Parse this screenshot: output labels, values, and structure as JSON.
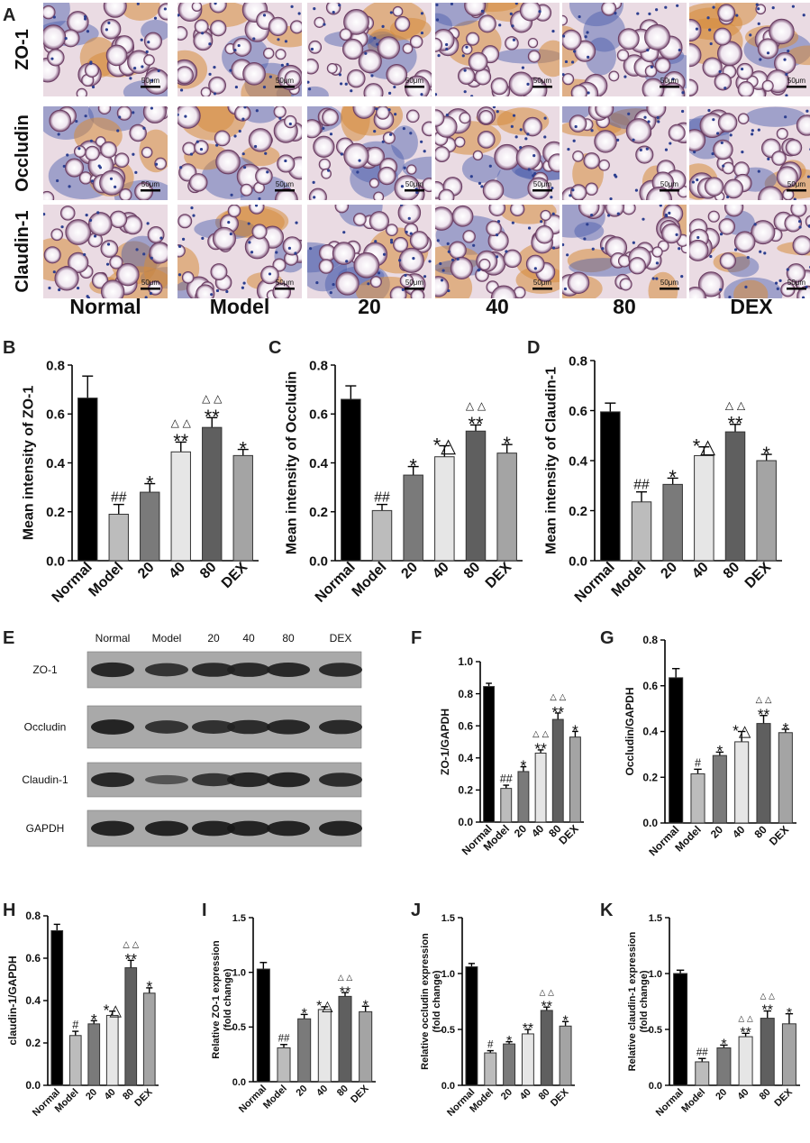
{
  "panel_letters": [
    "A",
    "B",
    "C",
    "D",
    "E",
    "F",
    "G",
    "H",
    "I",
    "J",
    "K"
  ],
  "histology": {
    "row_labels": [
      "ZO-1",
      "Occludin",
      "Claudin-1"
    ],
    "group_labels": [
      "Normal",
      "Model",
      "20",
      "40",
      "80",
      "DEX"
    ],
    "scale_bar": "50μm"
  },
  "western_blot": {
    "lane_labels": [
      "Normal",
      "Model",
      "20",
      "40",
      "80",
      "DEX"
    ],
    "band_labels": [
      "ZO-1",
      "Occludin",
      "Claudin-1",
      "GAPDH"
    ],
    "band_intensity": [
      [
        0.85,
        0.72,
        0.8,
        0.82,
        0.84,
        0.8
      ],
      [
        0.9,
        0.72,
        0.75,
        0.8,
        0.85,
        0.82
      ],
      [
        0.85,
        0.35,
        0.7,
        0.85,
        0.88,
        0.8
      ],
      [
        0.9,
        0.9,
        0.9,
        0.9,
        0.9,
        0.9
      ]
    ]
  },
  "colors": {
    "bars": [
      "#000000",
      "#bcbcbc",
      "#7a7a7a",
      "#e6e6e6",
      "#5f5f5f",
      "#a4a4a4"
    ],
    "bar_edge": "#333333"
  },
  "chart_data": [
    {
      "panel": "B",
      "type": "bar",
      "categories": [
        "Normal",
        "Model",
        "20",
        "40",
        "80",
        "DEX"
      ],
      "values": [
        0.665,
        0.19,
        0.28,
        0.445,
        0.545,
        0.43
      ],
      "errors": [
        0.09,
        0.04,
        0.035,
        0.04,
        0.04,
        0.025
      ],
      "annotations": [
        "",
        "##",
        "*",
        "**",
        "**",
        "*"
      ],
      "triangles": [
        "",
        "",
        "",
        "△ △",
        "△ △",
        ""
      ],
      "ylabel": "Mean intensity of ZO-1",
      "ylim": [
        0,
        0.8
      ],
      "yticks": [
        "0.0",
        "0.2",
        "0.4",
        "0.6",
        "0.8"
      ]
    },
    {
      "panel": "C",
      "type": "bar",
      "categories": [
        "Normal",
        "Model",
        "20",
        "40",
        "80",
        "DEX"
      ],
      "values": [
        0.66,
        0.205,
        0.35,
        0.425,
        0.53,
        0.44
      ],
      "errors": [
        0.055,
        0.025,
        0.035,
        0.045,
        0.025,
        0.035
      ],
      "annotations": [
        "",
        "##",
        "*",
        "*△",
        "**",
        "*"
      ],
      "triangles": [
        "",
        "",
        "",
        "",
        "△ △",
        ""
      ],
      "ylabel": "Mean intensity of Occludin",
      "ylim": [
        0,
        0.8
      ],
      "yticks": [
        "0.0",
        "0.2",
        "0.4",
        "0.6",
        "0.8"
      ]
    },
    {
      "panel": "D",
      "type": "bar",
      "categories": [
        "Normal",
        "Model",
        "20",
        "40",
        "80",
        "DEX"
      ],
      "values": [
        0.595,
        0.235,
        0.305,
        0.42,
        0.515,
        0.4
      ],
      "errors": [
        0.035,
        0.04,
        0.025,
        0.035,
        0.03,
        0.025
      ],
      "annotations": [
        "",
        "##",
        "*",
        "*△",
        "**",
        "*"
      ],
      "triangles": [
        "",
        "",
        "",
        "",
        "△ △",
        ""
      ],
      "ylabel": "Mean intensity of Claudin-1",
      "ylim": [
        0,
        0.8
      ],
      "yticks": [
        "0.0",
        "0.2",
        "0.4",
        "0.6",
        "0.8"
      ]
    },
    {
      "panel": "F",
      "type": "bar",
      "categories": [
        "Normal",
        "Model",
        "20",
        "40",
        "80",
        "DEX"
      ],
      "values": [
        0.845,
        0.21,
        0.315,
        0.43,
        0.64,
        0.53
      ],
      "errors": [
        0.02,
        0.02,
        0.03,
        0.02,
        0.04,
        0.035
      ],
      "annotations": [
        "",
        "##",
        "*",
        "**",
        "**",
        "*"
      ],
      "triangles": [
        "",
        "",
        "",
        "△ △",
        "△ △",
        ""
      ],
      "ylabel": "ZO-1/GAPDH",
      "ylim": [
        0,
        1.0
      ],
      "yticks": [
        "0.0",
        "0.2",
        "0.4",
        "0.6",
        "0.8",
        "1.0"
      ]
    },
    {
      "panel": "G",
      "type": "bar",
      "categories": [
        "Normal",
        "Model",
        "20",
        "40",
        "80",
        "DEX"
      ],
      "values": [
        0.635,
        0.215,
        0.295,
        0.355,
        0.435,
        0.395
      ],
      "errors": [
        0.04,
        0.02,
        0.015,
        0.045,
        0.035,
        0.015
      ],
      "annotations": [
        "",
        "#",
        "*",
        "*△",
        "**",
        "*"
      ],
      "triangles": [
        "",
        "",
        "",
        "",
        "△ △",
        ""
      ],
      "ylabel": "Occludin/GAPDH",
      "ylim": [
        0,
        0.8
      ],
      "yticks": [
        "0.0",
        "0.2",
        "0.4",
        "0.6",
        "0.8"
      ]
    },
    {
      "panel": "H",
      "type": "bar",
      "categories": [
        "Normal",
        "Model",
        "20",
        "40",
        "80",
        "DEX"
      ],
      "values": [
        0.73,
        0.235,
        0.29,
        0.33,
        0.555,
        0.435
      ],
      "errors": [
        0.03,
        0.02,
        0.015,
        0.02,
        0.035,
        0.025
      ],
      "annotations": [
        "",
        "#",
        "*",
        "*△",
        "**",
        "*"
      ],
      "triangles": [
        "",
        "",
        "",
        "",
        "△ △",
        ""
      ],
      "ylabel": "claudin-1/GAPDH",
      "ylim": [
        0,
        0.8
      ],
      "yticks": [
        "0.0",
        "0.2",
        "0.4",
        "0.6",
        "0.8"
      ]
    },
    {
      "panel": "I",
      "type": "bar",
      "categories": [
        "Normal",
        "Model",
        "20",
        "40",
        "80",
        "DEX"
      ],
      "values": [
        1.03,
        0.31,
        0.575,
        0.66,
        0.78,
        0.64
      ],
      "errors": [
        0.06,
        0.03,
        0.04,
        0.025,
        0.035,
        0.05
      ],
      "annotations": [
        "",
        "##",
        "*",
        "*△",
        "**",
        "*"
      ],
      "triangles": [
        "",
        "",
        "",
        "",
        "△ △",
        ""
      ],
      "ylabel": "Relative ZO-1 expression\n(fold change)",
      "ylim": [
        0,
        1.5
      ],
      "yticks": [
        "0.0",
        "0.5",
        "1.0",
        "1.5"
      ]
    },
    {
      "panel": "J",
      "type": "bar",
      "categories": [
        "Normal",
        "Model",
        "20",
        "40",
        "80",
        "DEX"
      ],
      "values": [
        1.06,
        0.29,
        0.37,
        0.46,
        0.67,
        0.53
      ],
      "errors": [
        0.03,
        0.02,
        0.02,
        0.04,
        0.03,
        0.04
      ],
      "annotations": [
        "",
        "#",
        "*",
        "**",
        "**",
        "*"
      ],
      "triangles": [
        "",
        "",
        "",
        "",
        "△ △",
        ""
      ],
      "ylabel": "Relative occludin expression\n(fold change)",
      "ylim": [
        0,
        1.5
      ],
      "yticks": [
        "0.0",
        "0.5",
        "1.0",
        "1.5"
      ]
    },
    {
      "panel": "K",
      "type": "bar",
      "categories": [
        "Normal",
        "Model",
        "20",
        "40",
        "80",
        "DEX"
      ],
      "values": [
        1.0,
        0.21,
        0.335,
        0.435,
        0.6,
        0.55
      ],
      "errors": [
        0.03,
        0.03,
        0.025,
        0.03,
        0.065,
        0.09
      ],
      "annotations": [
        "",
        "##",
        "*",
        "**",
        "**",
        "*"
      ],
      "triangles": [
        "",
        "",
        "",
        "△ △",
        "△ △",
        ""
      ],
      "ylabel": "Relative claudin-1 expression\n(fold change)",
      "ylim": [
        0,
        1.5
      ],
      "yticks": [
        "0.0",
        "0.5",
        "1.0",
        "1.5"
      ]
    }
  ]
}
